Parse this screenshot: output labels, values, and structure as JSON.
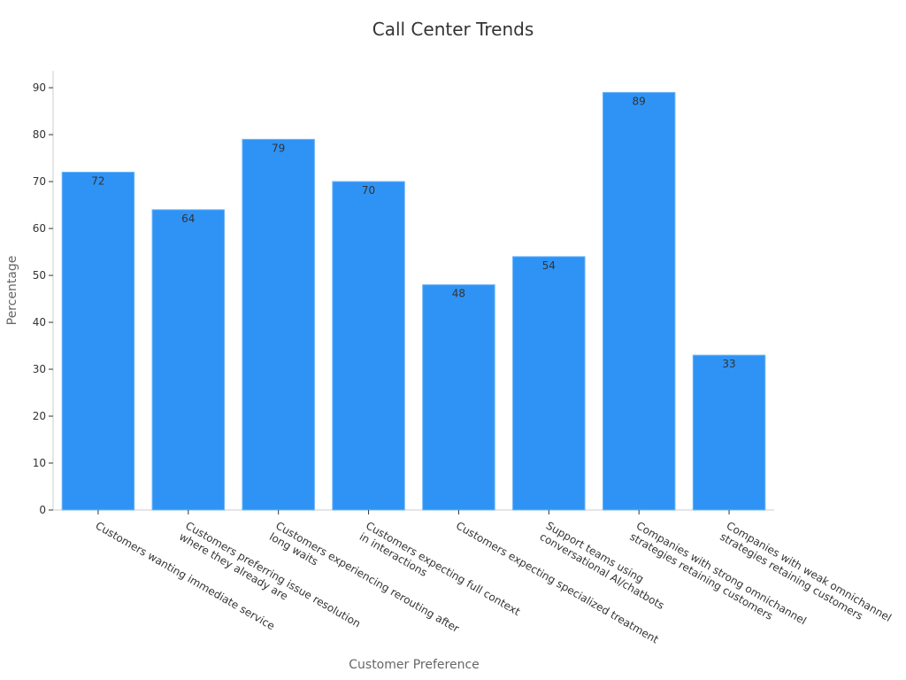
{
  "chart_data": {
    "type": "bar",
    "title": "Call Center Trends",
    "x_label": "Customer Preference",
    "y_label": "Percentage",
    "categories": [
      "Customers wanting immediate service",
      "Customers preferring issue resolution\nwhere they already are",
      "Customers experiencing rerouting after\nlong waits",
      "Customers expecting full context\nin interactions",
      "Customers expecting specialized treatment",
      "Support teams using\nconversational AI/chatbots",
      "Companies with strong omnichannel\nstrategies retaining customers",
      "Companies with weak omnichannel\nstrategies retaining customers"
    ],
    "values": [
      72,
      64,
      79,
      70,
      48,
      54,
      89,
      33
    ],
    "color": "#2e93f5",
    "ylim": [
      0,
      93.6
    ],
    "yticks": [
      0,
      10,
      20,
      30,
      40,
      50,
      60,
      70,
      80,
      90
    ]
  }
}
